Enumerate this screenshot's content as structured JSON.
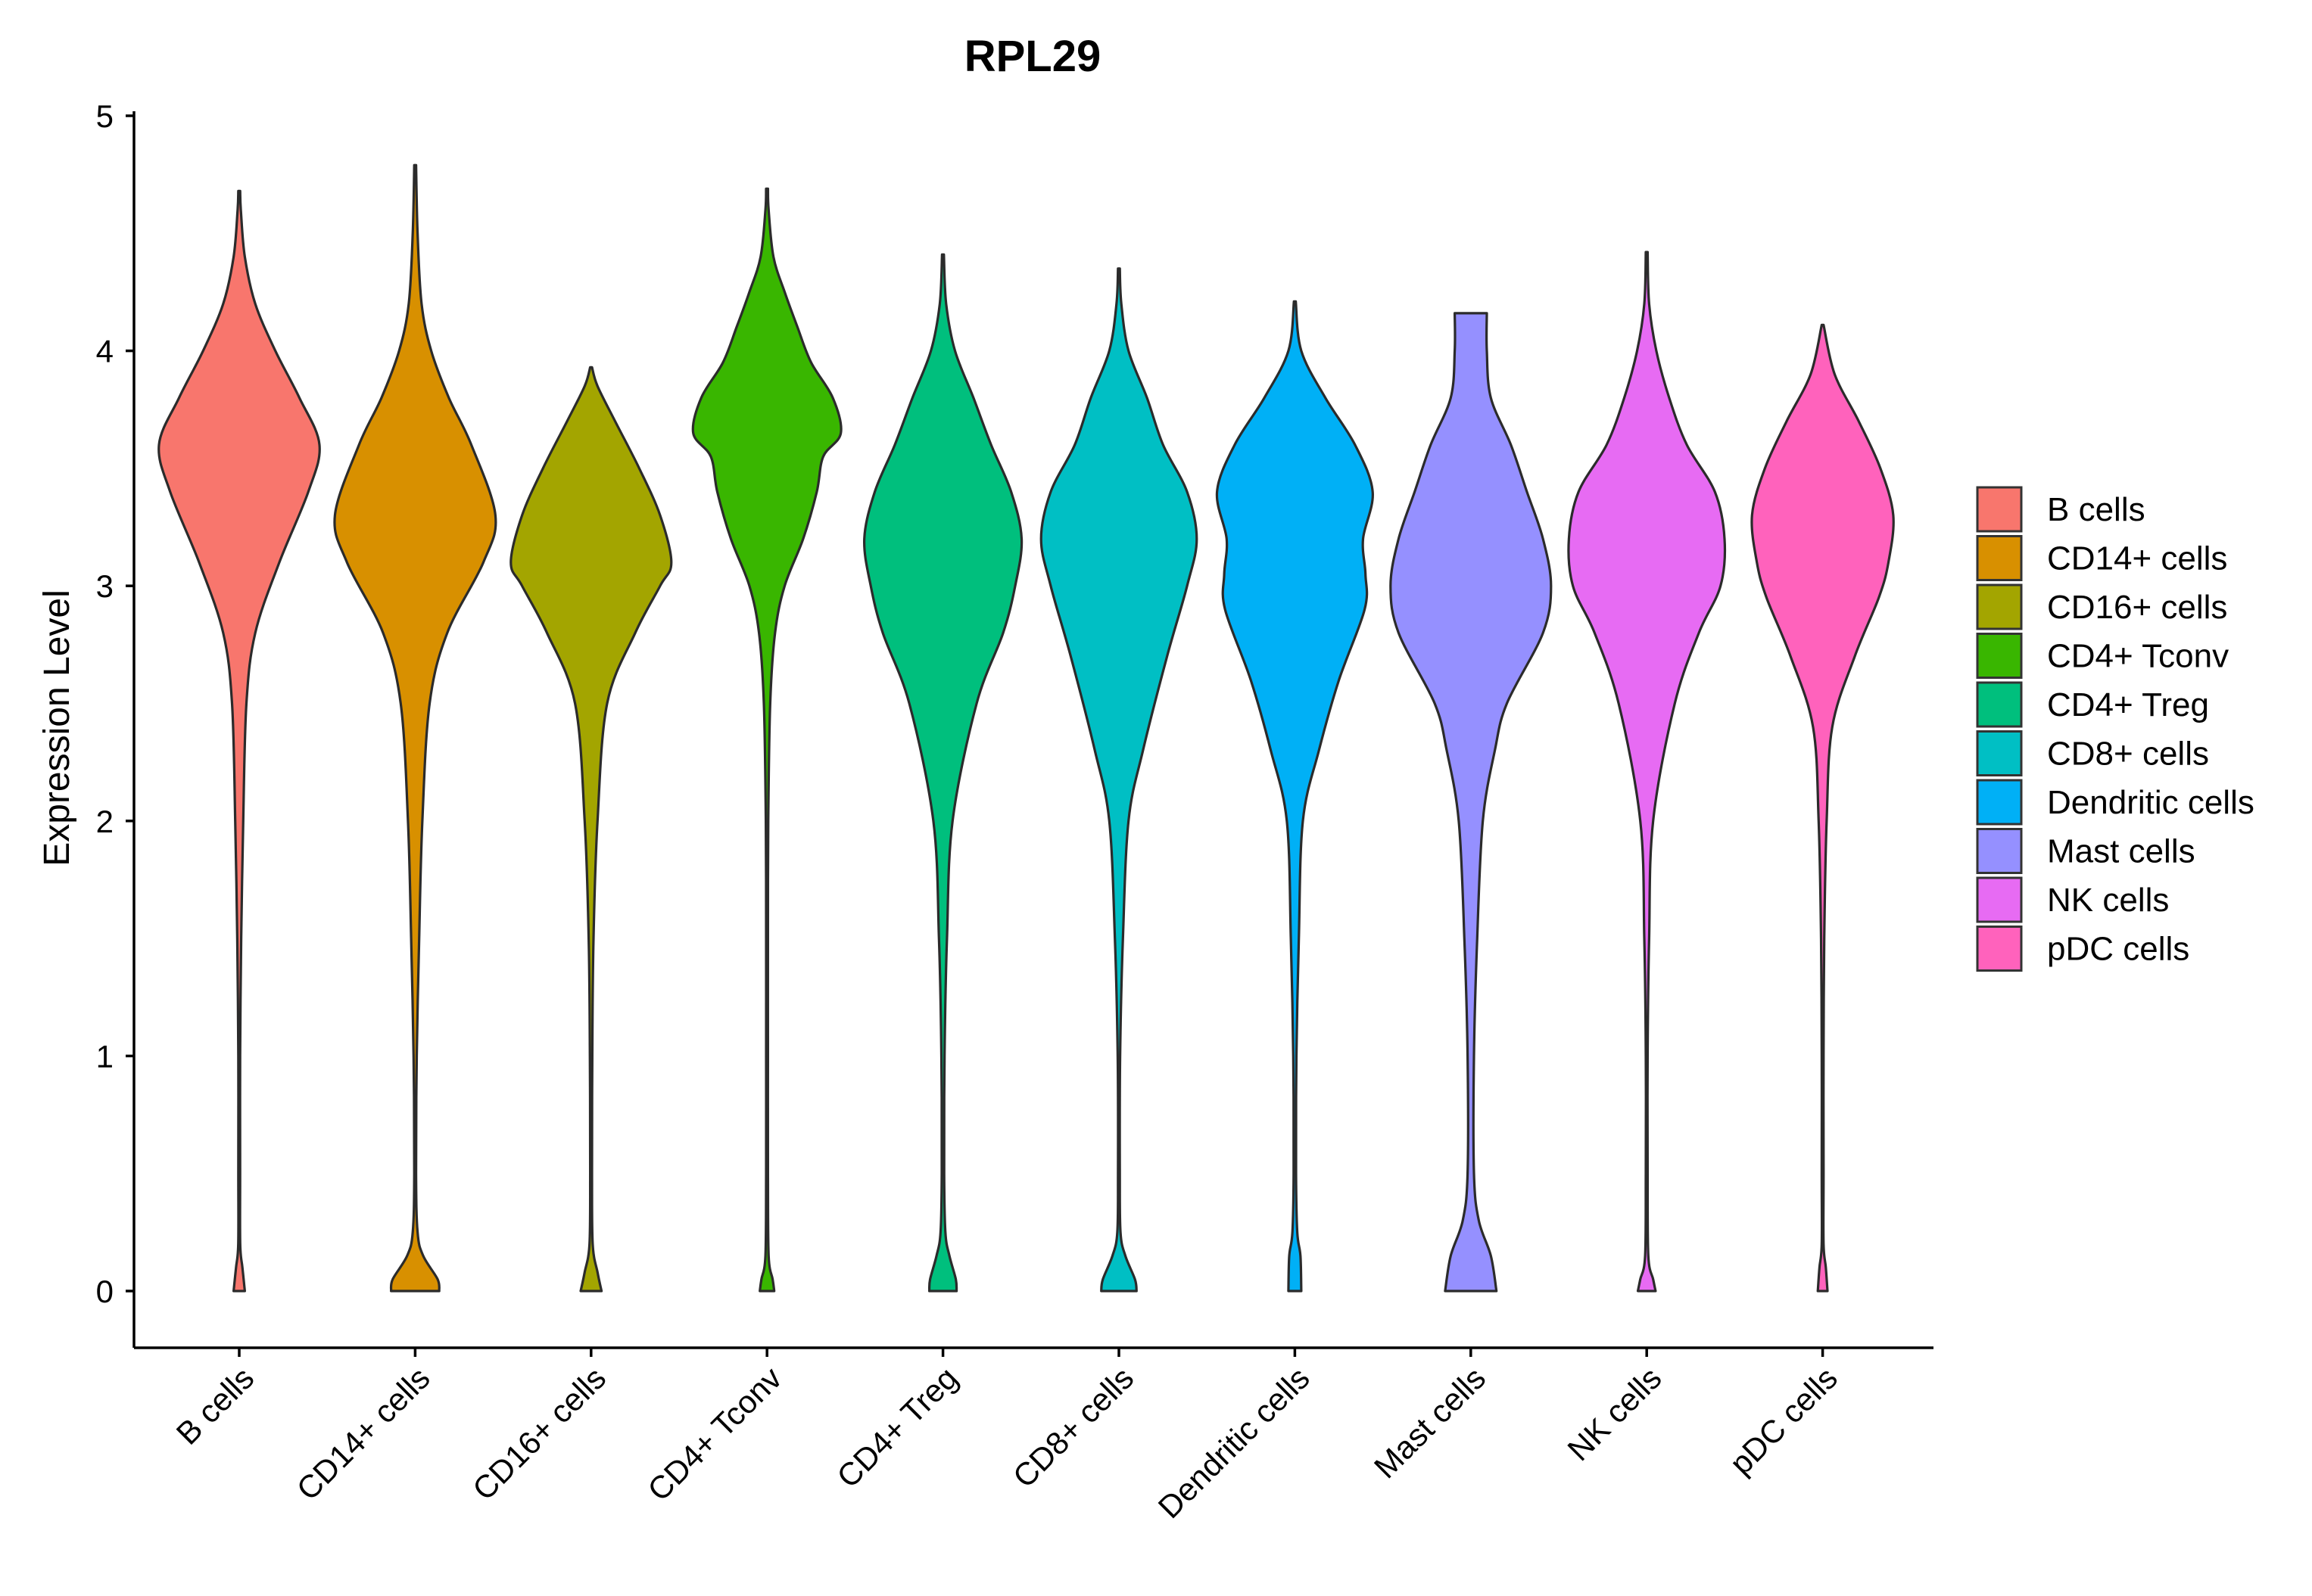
{
  "chart_data": {
    "type": "violin",
    "title": "RPL29",
    "xlabel": "",
    "ylabel": "Expression Level",
    "ylim": [
      -0.24,
      5.05
    ],
    "yticks": [
      0,
      1,
      2,
      3,
      4,
      5
    ],
    "yticklabels": [
      "0",
      "1",
      "2",
      "3",
      "4",
      "5"
    ],
    "grid": false,
    "legend_position": "right",
    "categories": [
      "B cells",
      "CD14+ cells",
      "CD16+ cells",
      "CD4+ Tconv",
      "CD4+ Treg",
      "CD8+ cells",
      "Dendritic cells",
      "Mast cells",
      "NK cells",
      "pDC cells"
    ],
    "colors": [
      "#F8766D",
      "#D89000",
      "#A3A500",
      "#39B600",
      "#00BF7D",
      "#00BFC4",
      "#00B0F6",
      "#9590FF",
      "#E76BF3",
      "#FF62BC"
    ],
    "violins": [
      {
        "name": "B cells",
        "min": 0,
        "max": 4.68,
        "profile": [
          [
            0,
            0.07
          ],
          [
            0.1,
            0.04
          ],
          [
            0.2,
            0.012
          ],
          [
            0.5,
            0.006
          ],
          [
            1,
            0.01
          ],
          [
            1.5,
            0.025
          ],
          [
            2,
            0.05
          ],
          [
            2.5,
            0.09
          ],
          [
            2.8,
            0.2
          ],
          [
            3.1,
            0.5
          ],
          [
            3.4,
            0.86
          ],
          [
            3.6,
            1.0
          ],
          [
            3.8,
            0.75
          ],
          [
            4.0,
            0.45
          ],
          [
            4.2,
            0.2
          ],
          [
            4.4,
            0.07
          ],
          [
            4.6,
            0.02
          ],
          [
            4.68,
            0.005
          ]
        ]
      },
      {
        "name": "CD14+ cells",
        "min": 0,
        "max": 4.79,
        "profile": [
          [
            0,
            0.3
          ],
          [
            0.05,
            0.28
          ],
          [
            0.15,
            0.1
          ],
          [
            0.25,
            0.03
          ],
          [
            0.5,
            0.01
          ],
          [
            1,
            0.02
          ],
          [
            1.5,
            0.05
          ],
          [
            2,
            0.09
          ],
          [
            2.5,
            0.18
          ],
          [
            2.8,
            0.4
          ],
          [
            3.1,
            0.85
          ],
          [
            3.3,
            1.0
          ],
          [
            3.6,
            0.7
          ],
          [
            3.8,
            0.42
          ],
          [
            4.0,
            0.2
          ],
          [
            4.2,
            0.08
          ],
          [
            4.5,
            0.03
          ],
          [
            4.79,
            0.005
          ]
        ]
      },
      {
        "name": "CD16+ cells",
        "min": 0,
        "max": 3.93,
        "profile": [
          [
            0,
            0.13
          ],
          [
            0.08,
            0.08
          ],
          [
            0.2,
            0.02
          ],
          [
            0.5,
            0.01
          ],
          [
            1,
            0.015
          ],
          [
            1.5,
            0.03
          ],
          [
            2,
            0.08
          ],
          [
            2.5,
            0.2
          ],
          [
            2.8,
            0.55
          ],
          [
            3.0,
            0.86
          ],
          [
            3.1,
            1.0
          ],
          [
            3.3,
            0.86
          ],
          [
            3.5,
            0.6
          ],
          [
            3.7,
            0.3
          ],
          [
            3.85,
            0.08
          ],
          [
            3.93,
            0.01
          ]
        ]
      },
      {
        "name": "CD4+ Tconv",
        "min": 0,
        "max": 4.69,
        "profile": [
          [
            0,
            0.09
          ],
          [
            0.05,
            0.07
          ],
          [
            0.15,
            0.02
          ],
          [
            0.5,
            0.008
          ],
          [
            1,
            0.009
          ],
          [
            1.5,
            0.01
          ],
          [
            2,
            0.015
          ],
          [
            2.5,
            0.04
          ],
          [
            2.8,
            0.1
          ],
          [
            3.0,
            0.22
          ],
          [
            3.2,
            0.45
          ],
          [
            3.4,
            0.62
          ],
          [
            3.55,
            0.7
          ],
          [
            3.65,
            0.92
          ],
          [
            3.8,
            0.82
          ],
          [
            3.95,
            0.55
          ],
          [
            4.1,
            0.38
          ],
          [
            4.25,
            0.22
          ],
          [
            4.4,
            0.08
          ],
          [
            4.6,
            0.02
          ],
          [
            4.69,
            0.005
          ]
        ]
      },
      {
        "name": "CD4+ Treg",
        "min": 0,
        "max": 4.41,
        "profile": [
          [
            0,
            0.17
          ],
          [
            0.05,
            0.16
          ],
          [
            0.15,
            0.08
          ],
          [
            0.25,
            0.03
          ],
          [
            0.5,
            0.015
          ],
          [
            1,
            0.02
          ],
          [
            1.5,
            0.05
          ],
          [
            2,
            0.12
          ],
          [
            2.5,
            0.42
          ],
          [
            2.8,
            0.75
          ],
          [
            3.0,
            0.9
          ],
          [
            3.2,
            0.98
          ],
          [
            3.4,
            0.85
          ],
          [
            3.6,
            0.6
          ],
          [
            3.8,
            0.38
          ],
          [
            4.0,
            0.15
          ],
          [
            4.2,
            0.04
          ],
          [
            4.41,
            0.005
          ]
        ]
      },
      {
        "name": "CD8+ cells",
        "min": 0,
        "max": 4.35,
        "profile": [
          [
            0,
            0.22
          ],
          [
            0.05,
            0.2
          ],
          [
            0.15,
            0.08
          ],
          [
            0.25,
            0.02
          ],
          [
            0.5,
            0.01
          ],
          [
            1,
            0.015
          ],
          [
            1.5,
            0.05
          ],
          [
            2,
            0.12
          ],
          [
            2.3,
            0.3
          ],
          [
            2.7,
            0.6
          ],
          [
            3.0,
            0.85
          ],
          [
            3.2,
            0.97
          ],
          [
            3.4,
            0.85
          ],
          [
            3.6,
            0.55
          ],
          [
            3.8,
            0.35
          ],
          [
            4.0,
            0.12
          ],
          [
            4.2,
            0.03
          ],
          [
            4.35,
            0.005
          ]
        ]
      },
      {
        "name": "Dendritic cells",
        "min": 0,
        "max": 4.21,
        "profile": [
          [
            0,
            0.08
          ],
          [
            0.15,
            0.07
          ],
          [
            0.25,
            0.03
          ],
          [
            0.5,
            0.015
          ],
          [
            1,
            0.02
          ],
          [
            1.5,
            0.05
          ],
          [
            2,
            0.1
          ],
          [
            2.3,
            0.3
          ],
          [
            2.6,
            0.55
          ],
          [
            2.9,
            0.87
          ],
          [
            3.05,
            0.88
          ],
          [
            3.2,
            0.85
          ],
          [
            3.4,
            0.97
          ],
          [
            3.6,
            0.75
          ],
          [
            3.8,
            0.38
          ],
          [
            4.0,
            0.08
          ],
          [
            4.21,
            0.005
          ]
        ]
      },
      {
        "name": "Mast cells",
        "min": 0,
        "max": 4.16,
        "profile": [
          [
            0,
            0.32
          ],
          [
            0.15,
            0.25
          ],
          [
            0.3,
            0.1
          ],
          [
            0.5,
            0.04
          ],
          [
            1,
            0.04
          ],
          [
            1.5,
            0.08
          ],
          [
            2,
            0.15
          ],
          [
            2.3,
            0.3
          ],
          [
            2.5,
            0.45
          ],
          [
            2.8,
            0.9
          ],
          [
            3.0,
            1.0
          ],
          [
            3.2,
            0.9
          ],
          [
            3.4,
            0.7
          ],
          [
            3.6,
            0.5
          ],
          [
            3.8,
            0.25
          ],
          [
            4.0,
            0.2
          ],
          [
            4.16,
            0.2
          ]
        ]
      },
      {
        "name": "NK cells",
        "min": 0,
        "max": 4.42,
        "profile": [
          [
            0,
            0.11
          ],
          [
            0.05,
            0.08
          ],
          [
            0.15,
            0.02
          ],
          [
            0.5,
            0.008
          ],
          [
            1,
            0.01
          ],
          [
            1.5,
            0.03
          ],
          [
            2,
            0.08
          ],
          [
            2.5,
            0.35
          ],
          [
            2.8,
            0.65
          ],
          [
            3.0,
            0.92
          ],
          [
            3.2,
            0.97
          ],
          [
            3.4,
            0.85
          ],
          [
            3.6,
            0.5
          ],
          [
            3.8,
            0.28
          ],
          [
            4.0,
            0.12
          ],
          [
            4.2,
            0.03
          ],
          [
            4.42,
            0.005
          ]
        ]
      },
      {
        "name": "pDC cells",
        "min": 0,
        "max": 4.11,
        "profile": [
          [
            0,
            0.06
          ],
          [
            0.1,
            0.04
          ],
          [
            0.2,
            0.01
          ],
          [
            0.5,
            0.006
          ],
          [
            1,
            0.008
          ],
          [
            1.5,
            0.02
          ],
          [
            2,
            0.05
          ],
          [
            2.4,
            0.12
          ],
          [
            2.7,
            0.4
          ],
          [
            2.95,
            0.7
          ],
          [
            3.1,
            0.82
          ],
          [
            3.3,
            0.88
          ],
          [
            3.5,
            0.72
          ],
          [
            3.7,
            0.45
          ],
          [
            3.9,
            0.15
          ],
          [
            4.11,
            0.005
          ]
        ]
      }
    ]
  }
}
